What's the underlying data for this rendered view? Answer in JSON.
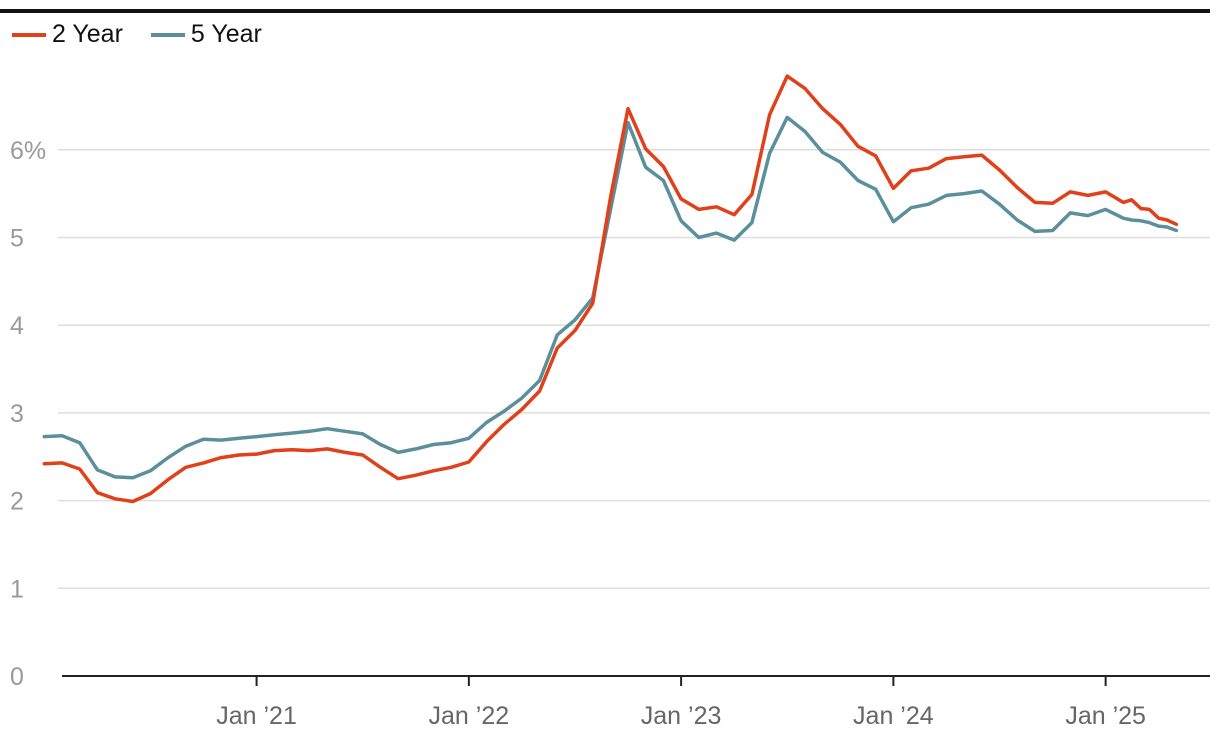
{
  "chart_data": {
    "type": "line",
    "title": "",
    "xlabel": "",
    "ylabel": "",
    "ylim": [
      0,
      7.0
    ],
    "grid": true,
    "legend_position": "top-left",
    "y_ticks": [
      {
        "value": 0,
        "label": "0"
      },
      {
        "value": 1,
        "label": "1"
      },
      {
        "value": 2,
        "label": "2"
      },
      {
        "value": 3,
        "label": "3"
      },
      {
        "value": 4,
        "label": "4"
      },
      {
        "value": 5,
        "label": "5"
      },
      {
        "value": 6,
        "label": "6%"
      }
    ],
    "x_ticks": [
      {
        "date": "2021-01",
        "label": "Jan ’21"
      },
      {
        "date": "2022-01",
        "label": "Jan ’22"
      },
      {
        "date": "2023-01",
        "label": "Jan ’23"
      },
      {
        "date": "2024-01",
        "label": "Jan ’24"
      },
      {
        "date": "2025-01",
        "label": "Jan ’25"
      }
    ],
    "x_range": [
      "2020-01",
      "2025-07"
    ],
    "series": [
      {
        "name": "2 Year",
        "color": "#e0401a",
        "points": [
          [
            "2020-01",
            2.42
          ],
          [
            "2020-02",
            2.43
          ],
          [
            "2020-03",
            2.36
          ],
          [
            "2020-04",
            2.09
          ],
          [
            "2020-05",
            2.02
          ],
          [
            "2020-06",
            1.99
          ],
          [
            "2020-07",
            2.08
          ],
          [
            "2020-08",
            2.24
          ],
          [
            "2020-09",
            2.38
          ],
          [
            "2020-10",
            2.43
          ],
          [
            "2020-11",
            2.49
          ],
          [
            "2020-12",
            2.52
          ],
          [
            "2021-01",
            2.53
          ],
          [
            "2021-02",
            2.57
          ],
          [
            "2021-03",
            2.58
          ],
          [
            "2021-04",
            2.57
          ],
          [
            "2021-05",
            2.59
          ],
          [
            "2021-06",
            2.55
          ],
          [
            "2021-07",
            2.52
          ],
          [
            "2021-08",
            2.38
          ],
          [
            "2021-09",
            2.25
          ],
          [
            "2021-10",
            2.29
          ],
          [
            "2021-11",
            2.34
          ],
          [
            "2021-12",
            2.38
          ],
          [
            "2022-01",
            2.44
          ],
          [
            "2022-02",
            2.67
          ],
          [
            "2022-03",
            2.87
          ],
          [
            "2022-04",
            3.04
          ],
          [
            "2022-05",
            3.25
          ],
          [
            "2022-06",
            3.74
          ],
          [
            "2022-07",
            3.94
          ],
          [
            "2022-08",
            4.25
          ],
          [
            "2022-09",
            5.45
          ],
          [
            "2022-10",
            6.47
          ],
          [
            "2022-11",
            6.01
          ],
          [
            "2022-12",
            5.81
          ],
          [
            "2023-01",
            5.44
          ],
          [
            "2023-02",
            5.32
          ],
          [
            "2023-03",
            5.35
          ],
          [
            "2023-04",
            5.26
          ],
          [
            "2023-05",
            5.49
          ],
          [
            "2023-06",
            6.4
          ],
          [
            "2023-07",
            6.84
          ],
          [
            "2023-08",
            6.7
          ],
          [
            "2023-09",
            6.47
          ],
          [
            "2023-10",
            6.29
          ],
          [
            "2023-11",
            6.04
          ],
          [
            "2023-12",
            5.93
          ],
          [
            "2024-01",
            5.56
          ],
          [
            "2024-02",
            5.76
          ],
          [
            "2024-03",
            5.79
          ],
          [
            "2024-04",
            5.9
          ],
          [
            "2024-05",
            5.92
          ],
          [
            "2024-06",
            5.94
          ],
          [
            "2024-07",
            5.77
          ],
          [
            "2024-08",
            5.57
          ],
          [
            "2024-09",
            5.4
          ],
          [
            "2024-10",
            5.39
          ],
          [
            "2024-11",
            5.52
          ],
          [
            "2024-12",
            5.48
          ],
          [
            "2025-01",
            5.52
          ],
          [
            "2025-02",
            5.4
          ],
          [
            "2025-02-15",
            5.43
          ],
          [
            "2025-03",
            5.33
          ],
          [
            "2025-03-15",
            5.32
          ],
          [
            "2025-04",
            5.22
          ],
          [
            "2025-04-15",
            5.2
          ],
          [
            "2025-05",
            5.15
          ]
        ]
      },
      {
        "name": "5 Year",
        "color": "#5c8f9c",
        "points": [
          [
            "2020-01",
            2.73
          ],
          [
            "2020-02",
            2.74
          ],
          [
            "2020-03",
            2.66
          ],
          [
            "2020-04",
            2.35
          ],
          [
            "2020-05",
            2.27
          ],
          [
            "2020-06",
            2.26
          ],
          [
            "2020-07",
            2.34
          ],
          [
            "2020-08",
            2.49
          ],
          [
            "2020-09",
            2.62
          ],
          [
            "2020-10",
            2.7
          ],
          [
            "2020-11",
            2.69
          ],
          [
            "2020-12",
            2.71
          ],
          [
            "2021-01",
            2.73
          ],
          [
            "2021-02",
            2.75
          ],
          [
            "2021-03",
            2.77
          ],
          [
            "2021-04",
            2.79
          ],
          [
            "2021-05",
            2.82
          ],
          [
            "2021-06",
            2.79
          ],
          [
            "2021-07",
            2.76
          ],
          [
            "2021-08",
            2.64
          ],
          [
            "2021-09",
            2.55
          ],
          [
            "2021-10",
            2.59
          ],
          [
            "2021-11",
            2.64
          ],
          [
            "2021-12",
            2.66
          ],
          [
            "2022-01",
            2.71
          ],
          [
            "2022-02",
            2.89
          ],
          [
            "2022-03",
            3.02
          ],
          [
            "2022-04",
            3.17
          ],
          [
            "2022-05",
            3.37
          ],
          [
            "2022-06",
            3.89
          ],
          [
            "2022-07",
            4.06
          ],
          [
            "2022-08",
            4.31
          ],
          [
            "2022-09",
            5.31
          ],
          [
            "2022-10",
            6.31
          ],
          [
            "2022-11",
            5.8
          ],
          [
            "2022-12",
            5.65
          ],
          [
            "2023-01",
            5.19
          ],
          [
            "2023-02",
            5.0
          ],
          [
            "2023-03",
            5.05
          ],
          [
            "2023-04",
            4.97
          ],
          [
            "2023-05",
            5.17
          ],
          [
            "2023-06",
            5.96
          ],
          [
            "2023-07",
            6.37
          ],
          [
            "2023-08",
            6.21
          ],
          [
            "2023-09",
            5.97
          ],
          [
            "2023-10",
            5.86
          ],
          [
            "2023-11",
            5.65
          ],
          [
            "2023-12",
            5.55
          ],
          [
            "2024-01",
            5.18
          ],
          [
            "2024-02",
            5.34
          ],
          [
            "2024-03",
            5.38
          ],
          [
            "2024-04",
            5.48
          ],
          [
            "2024-05",
            5.5
          ],
          [
            "2024-06",
            5.53
          ],
          [
            "2024-07",
            5.38
          ],
          [
            "2024-08",
            5.2
          ],
          [
            "2024-09",
            5.07
          ],
          [
            "2024-10",
            5.08
          ],
          [
            "2024-11",
            5.28
          ],
          [
            "2024-12",
            5.25
          ],
          [
            "2025-01",
            5.32
          ],
          [
            "2025-02",
            5.22
          ],
          [
            "2025-02-15",
            5.2
          ],
          [
            "2025-03",
            5.19
          ],
          [
            "2025-03-15",
            5.17
          ],
          [
            "2025-04",
            5.13
          ],
          [
            "2025-04-15",
            5.12
          ],
          [
            "2025-05",
            5.08
          ]
        ]
      }
    ]
  }
}
